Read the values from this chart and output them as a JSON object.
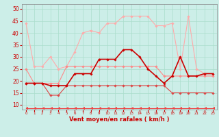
{
  "xlabel": "Vent moyen/en rafales ( km/h )",
  "background_color": "#cceee8",
  "grid_color": "#aaddcc",
  "x": [
    0,
    1,
    2,
    3,
    4,
    5,
    6,
    7,
    8,
    9,
    10,
    11,
    12,
    13,
    14,
    15,
    16,
    17,
    18,
    19,
    20,
    21,
    22,
    23
  ],
  "ylim": [
    8,
    52
  ],
  "xlim": [
    -0.5,
    23.5
  ],
  "yticks": [
    10,
    15,
    20,
    25,
    30,
    35,
    40,
    45,
    50
  ],
  "series": [
    {
      "y": [
        44,
        26,
        26,
        30,
        25,
        26,
        32,
        40,
        41,
        40,
        44,
        44,
        47,
        47,
        47,
        47,
        43,
        43,
        44,
        25,
        47,
        25,
        23,
        23
      ],
      "color": "#ffaaaa",
      "marker": "D",
      "markersize": 1.8,
      "linewidth": 0.8,
      "zorder": 2
    },
    {
      "y": [
        19,
        19,
        19,
        18,
        18,
        18,
        23,
        23,
        23,
        29,
        29,
        29,
        33,
        33,
        30,
        25,
        22,
        19,
        22,
        30,
        22,
        22,
        23,
        23
      ],
      "color": "#cc0000",
      "marker": "D",
      "markersize": 1.8,
      "linewidth": 1.2,
      "zorder": 5
    },
    {
      "y": [
        25,
        19,
        19,
        19,
        19,
        26,
        26,
        26,
        26,
        26,
        26,
        26,
        26,
        26,
        26,
        26,
        26,
        22,
        22,
        22,
        22,
        22,
        22,
        22
      ],
      "color": "#ff8888",
      "marker": "D",
      "markersize": 1.8,
      "linewidth": 0.8,
      "zorder": 3
    },
    {
      "y": [
        19,
        19,
        19,
        14,
        14,
        18,
        18,
        18,
        18,
        18,
        18,
        18,
        18,
        18,
        18,
        18,
        18,
        18,
        15,
        15,
        15,
        15,
        15,
        15
      ],
      "color": "#dd4444",
      "marker": "D",
      "markersize": 1.8,
      "linewidth": 0.8,
      "zorder": 3
    },
    {
      "y": [
        8.5,
        8.5,
        8.5,
        8.5,
        8.5,
        8.5,
        8.5,
        8.5,
        8.5,
        8.5,
        8.5,
        8.5,
        8.5,
        8.5,
        8.5,
        8.5,
        8.5,
        8.5,
        8.5,
        8.5,
        8.5,
        8.5,
        8.5,
        8.5
      ],
      "color": "#ee4444",
      "marker": 4,
      "markersize": 3.0,
      "linewidth": 0.8,
      "zorder": 5,
      "linestyle": "-"
    }
  ]
}
